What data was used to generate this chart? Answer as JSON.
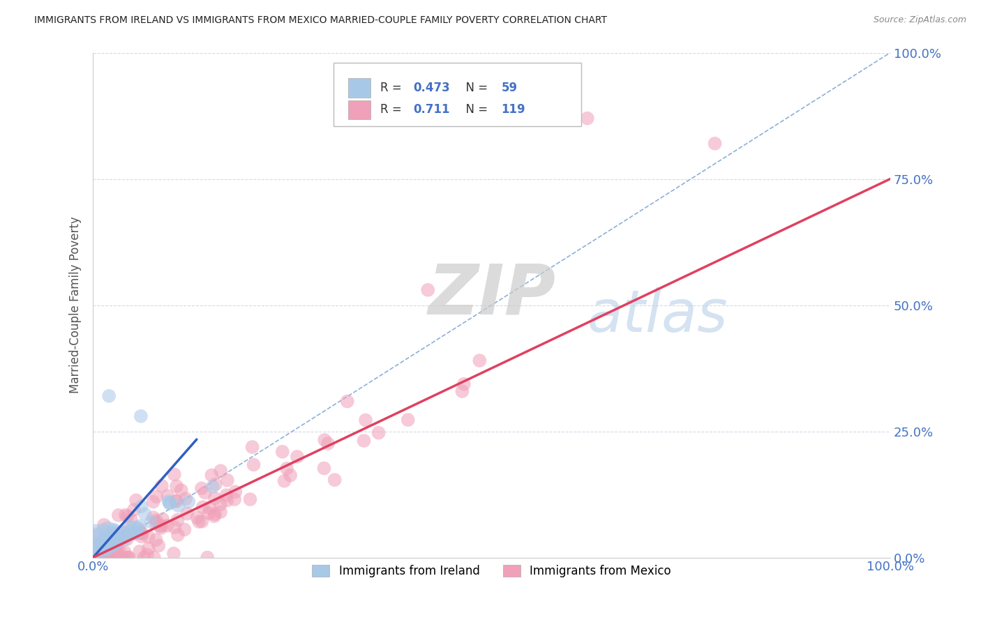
{
  "title": "IMMIGRANTS FROM IRELAND VS IMMIGRANTS FROM MEXICO MARRIED-COUPLE FAMILY POVERTY CORRELATION CHART",
  "source": "Source: ZipAtlas.com",
  "ylabel": "Married-Couple Family Poverty",
  "ireland_R": "0.473",
  "ireland_N": "59",
  "mexico_R": "0.711",
  "mexico_N": "119",
  "ireland_color": "#a8c8e8",
  "mexico_color": "#f0a0b8",
  "ireland_line_color": "#3060c0",
  "mexico_line_color": "#e04060",
  "diagonal_color": "#aabbd0",
  "background_color": "#ffffff",
  "grid_color": "#d8d8e8",
  "watermark_zip": "ZIP",
  "watermark_atlas": "atlas",
  "legend_labels": [
    "Immigrants from Ireland",
    "Immigrants from Mexico"
  ],
  "title_color": "#222222",
  "axis_label_color": "#555555",
  "tick_color_blue": "#4472c4",
  "right_tick_color": "#4472c4"
}
